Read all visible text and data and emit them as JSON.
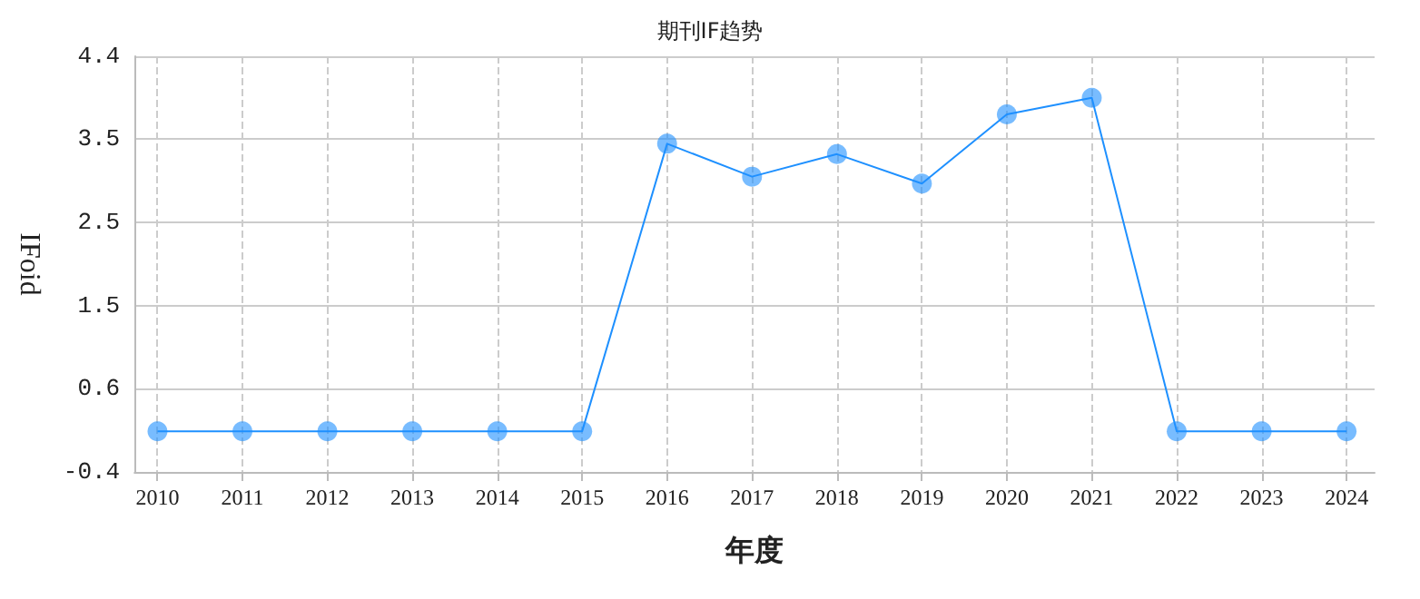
{
  "chart_data": {
    "type": "line",
    "title": "期刊IF趋势",
    "xlabel": "年度",
    "ylabel": "IFoid",
    "x": [
      2010,
      2011,
      2012,
      2013,
      2014,
      2015,
      2016,
      2017,
      2018,
      2019,
      2020,
      2021,
      2022,
      2023,
      2024
    ],
    "series": [
      {
        "color": "#1e90ff",
        "values": [
          0.07,
          0.07,
          0.07,
          0.07,
          0.07,
          0.07,
          3.39,
          3.01,
          3.27,
          2.93,
          3.73,
          3.92,
          0.07,
          0.07,
          0.07
        ]
      }
    ],
    "xlim": [
      2009.73,
      2024.33
    ],
    "xticks": [
      2010,
      2011,
      2012,
      2013,
      2014,
      2015,
      2016,
      2017,
      2018,
      2019,
      2020,
      2021,
      2022,
      2023,
      2024
    ],
    "ylim": [
      -0.4,
      4.4
    ],
    "yticks": [
      -0.4,
      {
        "value": 0.56,
        "label": "0.6"
      },
      {
        "value": 1.52,
        "label": "1.5"
      },
      {
        "value": 2.48,
        "label": "2.5"
      },
      {
        "value": 3.45,
        "label": "3.5"
      },
      4.4
    ],
    "grid": true,
    "marker": "circle",
    "line_style": "solid"
  }
}
